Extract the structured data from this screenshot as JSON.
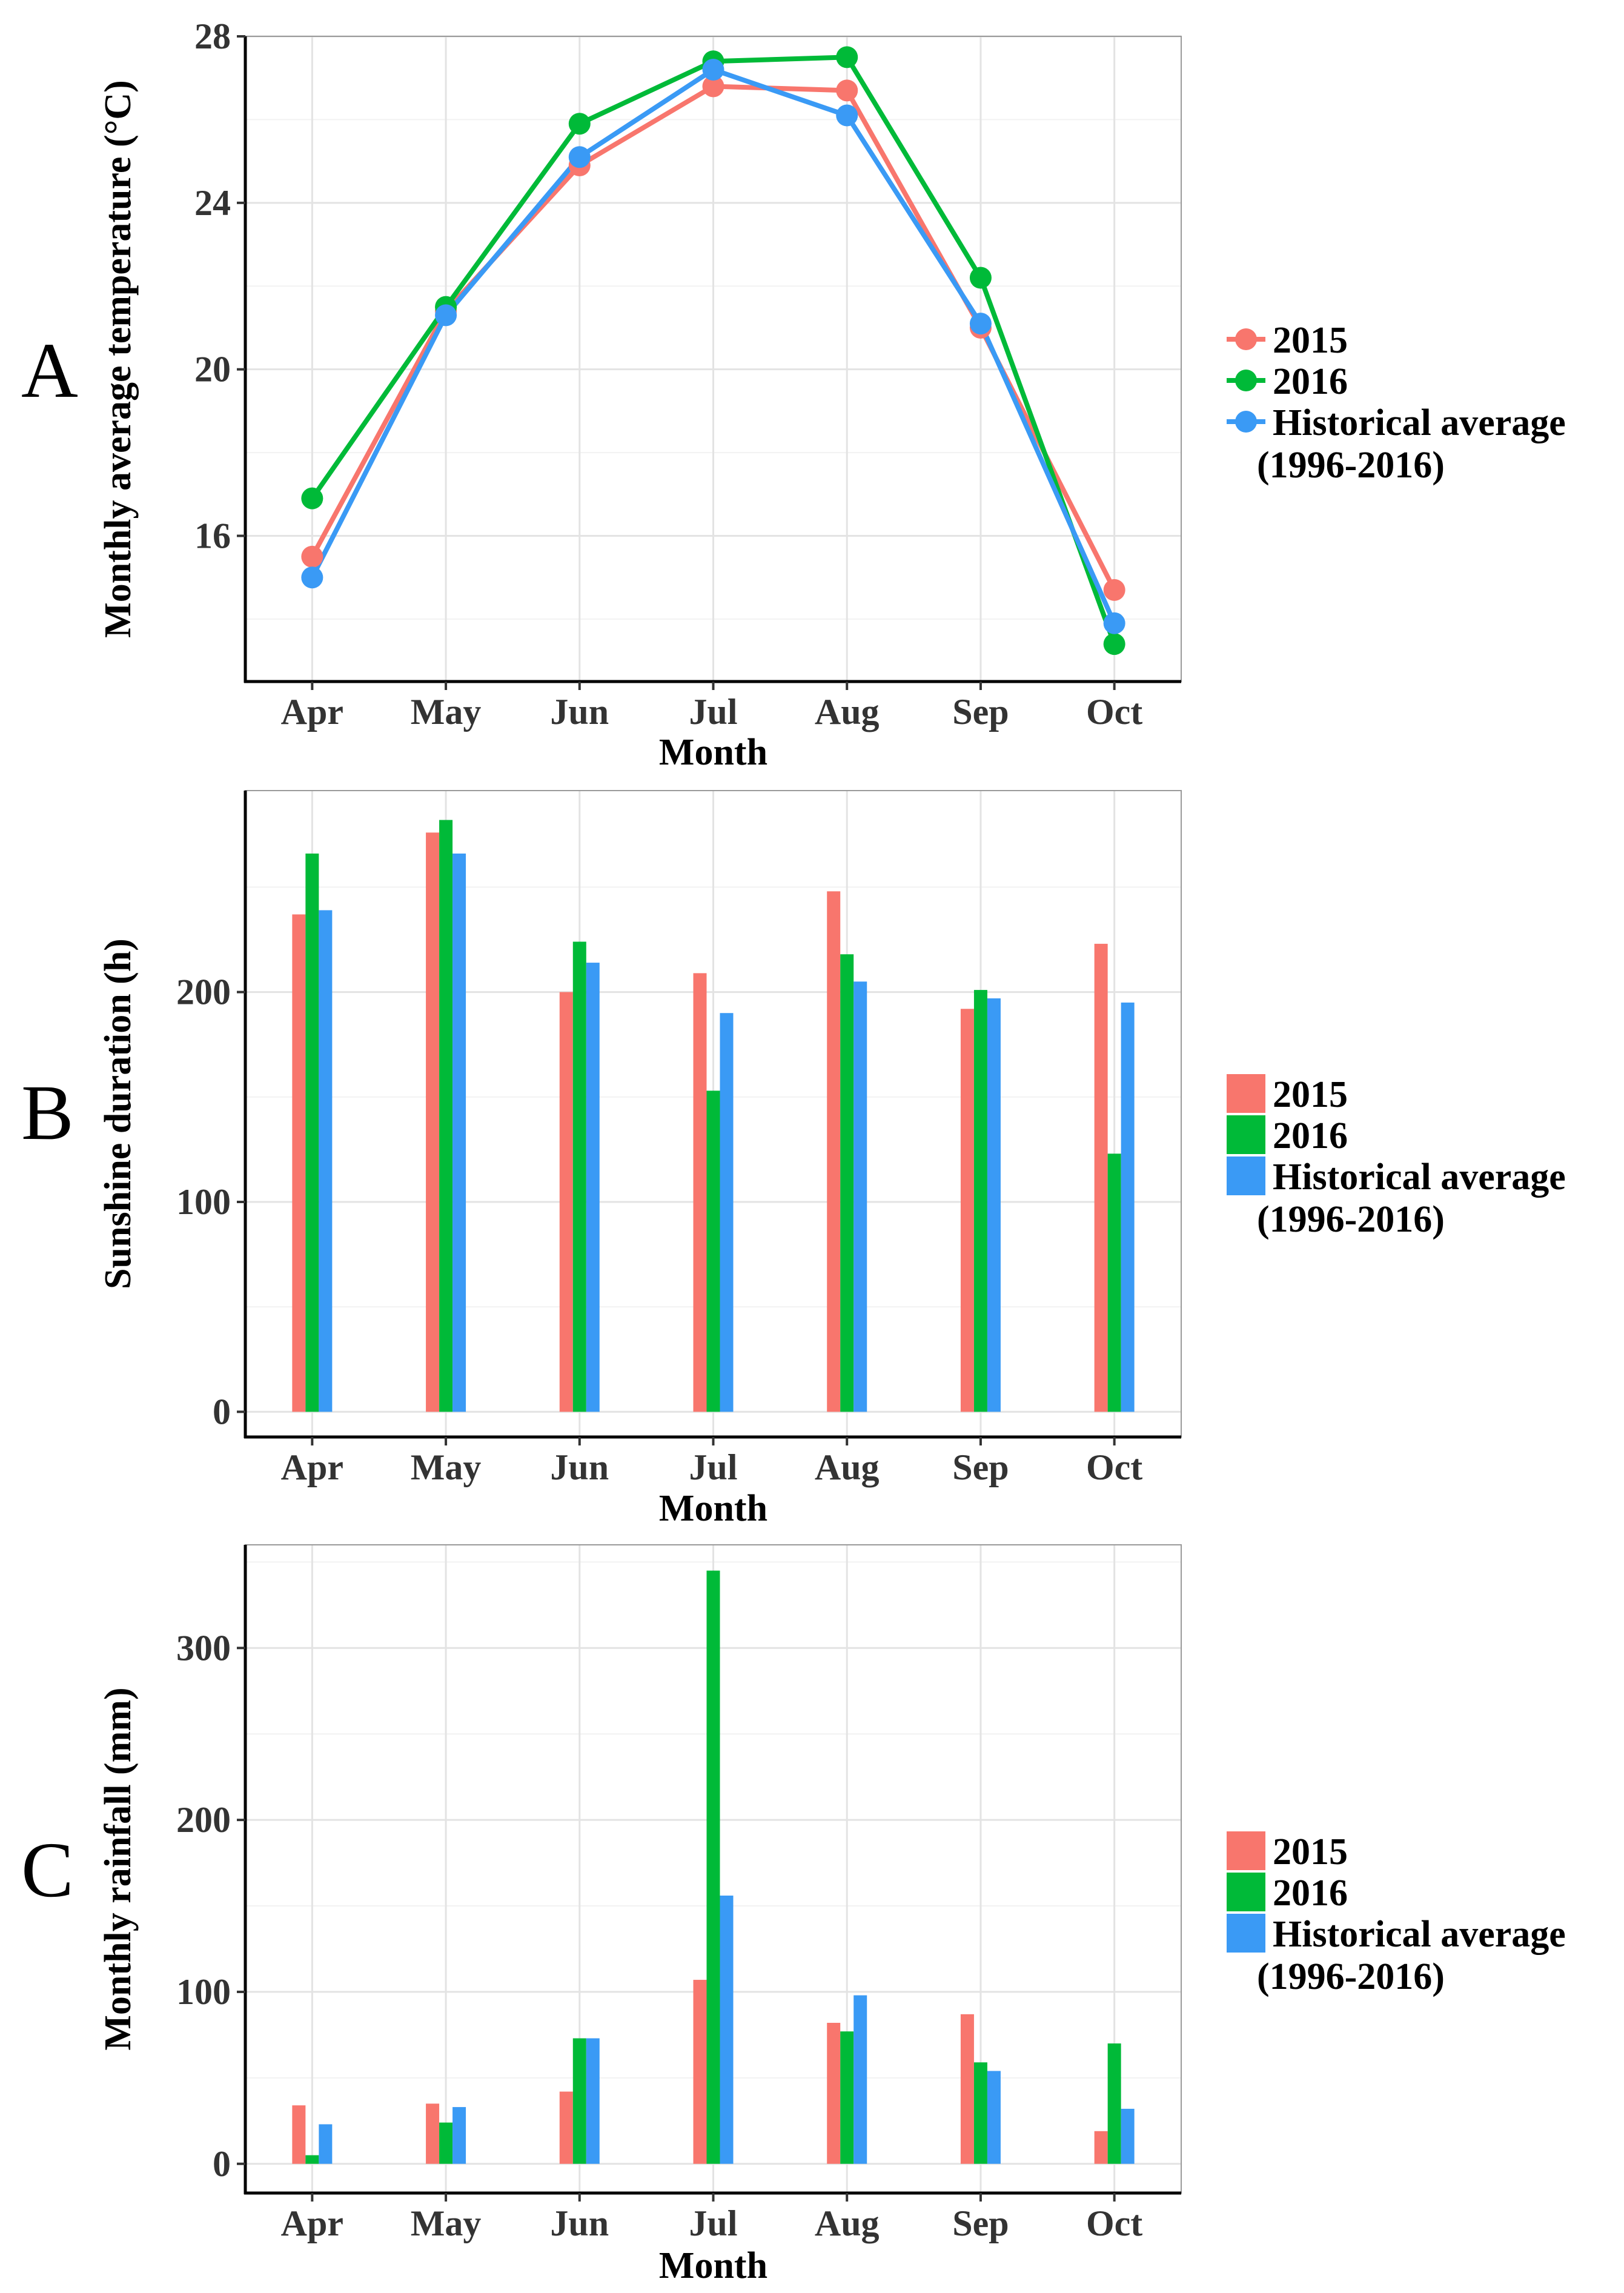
{
  "colors": {
    "2015": "#f8766d",
    "2016": "#00ba38",
    "hist": "#3a9af5"
  },
  "chart_data": [
    {
      "type": "line",
      "panel_label": "A",
      "xlabel": "Month",
      "ylabel": "Monthly average temperature (°C)",
      "categories": [
        "Apr",
        "May",
        "Jun",
        "Jul",
        "Aug",
        "Sep",
        "Oct"
      ],
      "ylim": [
        12.5,
        28
      ],
      "yticks": [
        16,
        20,
        24,
        28
      ],
      "legend_position": "right",
      "series": [
        {
          "name": "2015",
          "values": [
            15.5,
            21.4,
            24.9,
            26.8,
            26.7,
            21.0,
            14.7
          ]
        },
        {
          "name": "2016",
          "values": [
            16.9,
            21.5,
            25.9,
            27.4,
            27.5,
            22.2,
            13.4
          ]
        },
        {
          "name": "Historical average",
          "name_line2": "(1996-2016)",
          "values": [
            15.0,
            21.3,
            25.1,
            27.2,
            26.1,
            21.1,
            13.9
          ]
        }
      ]
    },
    {
      "type": "bar",
      "panel_label": "B",
      "xlabel": "Month",
      "ylabel": "Sunshine duration (h)",
      "categories": [
        "Apr",
        "May",
        "Jun",
        "Jul",
        "Aug",
        "Sep",
        "Oct"
      ],
      "ylim": [
        -12,
        296
      ],
      "yticks": [
        0,
        100,
        200
      ],
      "legend_position": "right",
      "series": [
        {
          "name": "2015",
          "values": [
            237,
            276,
            200,
            209,
            248,
            192,
            223
          ]
        },
        {
          "name": "2016",
          "values": [
            266,
            282,
            224,
            153,
            218,
            201,
            123
          ]
        },
        {
          "name": "Historical average",
          "name_line2": "(1996-2016)",
          "values": [
            239,
            266,
            214,
            190,
            205,
            197,
            195
          ]
        }
      ]
    },
    {
      "type": "bar",
      "panel_label": "C",
      "xlabel": "Month",
      "ylabel": "Monthly rainfall (mm)",
      "categories": [
        "Apr",
        "May",
        "Jun",
        "Jul",
        "Aug",
        "Sep",
        "Oct"
      ],
      "ylim": [
        -17,
        360
      ],
      "yticks": [
        0,
        100,
        200,
        300
      ],
      "legend_position": "right",
      "series": [
        {
          "name": "2015",
          "values": [
            34,
            35,
            42,
            107,
            82,
            87,
            19
          ]
        },
        {
          "name": "2016",
          "values": [
            5,
            24,
            73,
            345,
            77,
            59,
            70
          ]
        },
        {
          "name": "Historical average",
          "name_line2": "(1996-2016)",
          "values": [
            23,
            33,
            73,
            156,
            98,
            54,
            32
          ]
        }
      ]
    }
  ]
}
